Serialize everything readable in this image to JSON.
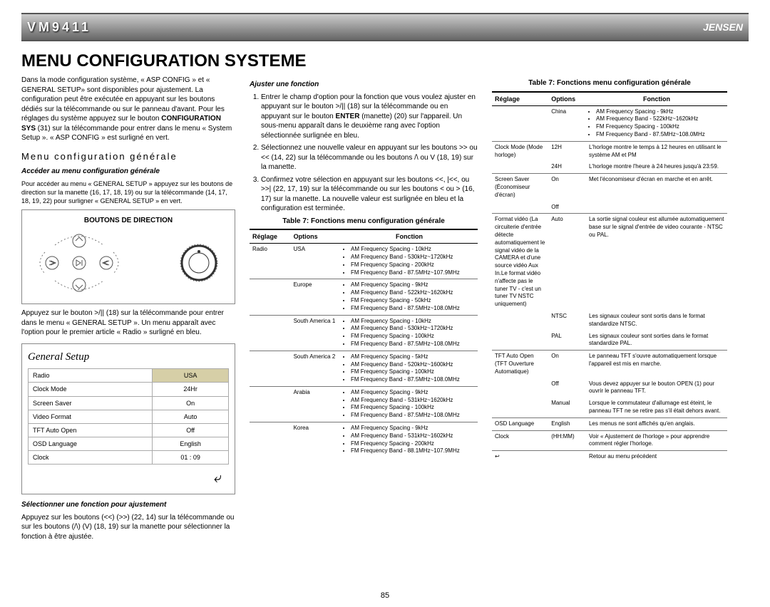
{
  "header": {
    "model": "VM9411",
    "brand": "JENSEN"
  },
  "title": "MENU CONFIGURATION SYSTEME",
  "intro": {
    "p1a": "Dans la mode configuration système, « ASP CONFIG » et « GENERAL SETUP» sont disponibles pour ajustement. La configuration peut être exécutée en appuyant sur les boutons dédiés sur la télécommande ou sur le panneau d'avant. Pour les réglages du système appuyez sur le bouton ",
    "p1b": "CONFIGURATION SYS",
    "p1c": " (31) sur la télécommande pour entrer dans le menu « System Setup ». « ASP CONFIG » est surligné en vert."
  },
  "section_sub": "Menu configuration générale",
  "access": {
    "title": "Accéder au menu configuration générale",
    "body": "Pour accéder au menu « GENERAL SETUP » appuyez sur les boutons de direction sur la manette (16, 17, 18, 19) ou sur la télécommande (14, 17, 18, 19, 22) pour surligner « GENERAL SETUP » en vert."
  },
  "diagram_title": "BOUTONS DE DIRECTION",
  "after_diagram": "Appuyez sur le bouton >/|| (18) sur la télécommande pour entrer dans le menu « GENERAL SETUP ». Un menu apparaît avec l'option pour le premier article « Radio » surligné en bleu.",
  "setup": {
    "title": "General Setup",
    "rows": [
      [
        "Radio",
        "USA",
        true
      ],
      [
        "Clock Mode",
        "24Hr",
        false
      ],
      [
        "Screen Saver",
        "On",
        false
      ],
      [
        "Video Format",
        "Auto",
        false
      ],
      [
        "TFT Auto Open",
        "Off",
        false
      ],
      [
        "OSD Language",
        "English",
        false
      ],
      [
        "Clock",
        "01  :  09",
        false
      ]
    ]
  },
  "select": {
    "title": "Sélectionner une fonction pour ajustement",
    "body": "Appuyez sur les boutons (<<) (>>) (22, 14) sur la télécommande ou sur les boutons (/\\) (V) (18, 19) sur la manette pour sélectionner la fonction à être ajustée."
  },
  "ajuster": {
    "title": "Ajuster une fonction",
    "li1a": "Entrer le champ d'option pour la fonction que vous voulez ajuster en appuyant sur le bouton >/|| (18) sur la télécommande ou en appuyant sur le bouton ",
    "li1b": "ENTER",
    "li1c": " (manette) (20) sur l'appareil. Un sous-menu apparaît dans le deuxième rang avec l'option sélectionnée surlignée en bleu.",
    "li2": "Sélectionnez une nouvelle valeur en appuyant sur les boutons >> ou << (14, 22) sur la télécommande ou les boutons /\\ ou V (18, 19) sur la manette.",
    "li3": "Confirmez votre sélection en appuyant sur les boutons <<, |<<, ou >>| (22, 17, 19) sur la télécommande ou sur les boutons < ou > (16, 17) sur la manette. La nouvelle valeur est surlignée en bleu et la configuration est terminée."
  },
  "table_caption": "Table 7: Fonctions menu configuration générale",
  "headers": {
    "reglage": "Réglage",
    "options": "Options",
    "fonction": "Fonction"
  },
  "table_left": [
    {
      "reglage": "Radio",
      "option": "USA",
      "specs": [
        "AM Frequency Spacing - 10kHz",
        "AM Frequency Band - 530kHz~1720kHz",
        "FM Frequency Spacing - 200kHz",
        "FM Frequency Band - 87.5MHz~107.9MHz"
      ]
    },
    {
      "reglage": "",
      "option": "Europe",
      "specs": [
        "AM Frequency Spacing - 9kHz",
        "AM Frequency Band - 522kHz~1620kHz",
        "FM Frequency Spacing - 50kHz",
        "FM Frequency Band - 87.5MHz~108.0MHz"
      ]
    },
    {
      "reglage": "",
      "option": "South America 1",
      "specs": [
        "AM Frequency Spacing - 10kHz",
        "AM Frequency Band - 530kHz~1720kHz",
        "FM Frequency Spacing - 100kHz",
        "FM Frequency Band - 87.5MHz~108.0MHz"
      ]
    },
    {
      "reglage": "",
      "option": "South America 2",
      "specs": [
        "AM Frequency Spacing - 5kHz",
        "AM Frequency Band - 520kHz~1600kHz",
        "FM Frequency Spacing - 100kHz",
        "FM Frequency Band - 87.5MHz~108.0MHz"
      ]
    },
    {
      "reglage": "",
      "option": "Arabia",
      "specs": [
        "AM Frequency Spacing - 9kHz",
        "AM Frequency Band - 531kHz~1620kHz",
        "FM Frequency Spacing - 100kHz",
        "FM Frequency Band - 87.5MHz~108.0MHz"
      ]
    },
    {
      "reglage": "",
      "option": "Korea",
      "specs": [
        "AM Frequency Spacing - 9kHz",
        "AM Frequency Band - 531kHz~1602kHz",
        "FM Frequency Spacing - 200kHz",
        "FM Frequency Band - 88.1MHz~107.9MHz"
      ]
    }
  ],
  "table_right": [
    {
      "reglage": "",
      "option": "China",
      "specs": [
        "AM Frequency Spacing - 9kHz",
        "AM Frequency Band - 522kHz~1620kHz",
        "FM Frequency Spacing - 100kHz",
        "FM Frequency Band - 87.5MHz~108.0MHz"
      ],
      "sub": false
    },
    {
      "reglage": "Clock Mode (Mode horloge)",
      "option": "12H",
      "fonction": "L'horloge montre le temps à 12 heures en utilisant le système AM et PM",
      "sub": false
    },
    {
      "reglage": "",
      "option": "24H",
      "fonction": "L'horloge montre l'heure à 24 heures jusqu'à 23:59.",
      "sub": true
    },
    {
      "reglage": "Screen Saver (Économiseur d'écran)",
      "option": "On",
      "fonction": "Met l'économiseur d'écran en marche et en arrêt.",
      "sub": false
    },
    {
      "reglage": "",
      "option": "Off",
      "fonction": "",
      "sub": true
    },
    {
      "reglage": "Format vidéo (La circuiterie d'entrée détecte automatiquement le signal vidéo de la CAMERA et d'une source vidéo Aux In.Le format vidéo n'affecte pas le tuner TV - c'est un tuner TV NSTC uniquement)",
      "option": "Auto",
      "fonction": "La sortie signal couleur est allumée automatiquement base sur le signal d'entrée de video courante - NTSC ou PAL.",
      "sub": false
    },
    {
      "reglage": "",
      "option": "NTSC",
      "fonction": "Les signaux couleur sont sortis dans le format standardize NTSC.",
      "sub": true
    },
    {
      "reglage": "",
      "option": "PAL",
      "fonction": "Les signaux couleur sont sorties dans le format standardize PAL.",
      "sub": true
    },
    {
      "reglage": "TFT Auto Open (TFT Ouverture Automatique)",
      "option": "On",
      "fonction": "Le panneau TFT s'ouvre automatiquement lorsque l'appareil est mis en marche.",
      "sub": false
    },
    {
      "reglage": "",
      "option": "Off",
      "fonction": "Vous devez appuyer sur le bouton OPEN (1) pour ouvrir le panneau TFT.",
      "sub": true
    },
    {
      "reglage": "",
      "option": "Manual",
      "fonction": "Lorsque le commutateur d'allumage est éteint, le panneau TFT ne se retire pas  s'il était dehors avant.",
      "sub": true
    },
    {
      "reglage": "OSD Language",
      "option": "English",
      "fonction": "Les menus ne sont affichés qu'en anglais.",
      "sub": false
    },
    {
      "reglage": "Clock",
      "option": "(HH:MM)",
      "fonction": "Voir « Ajustement de l'horloge » pour apprendre comment régler l'horloge.",
      "sub": false
    },
    {
      "reglage": "↩",
      "option": "",
      "fonction": "Retour au menu précédent",
      "sub": false
    }
  ],
  "pagenum": "85"
}
